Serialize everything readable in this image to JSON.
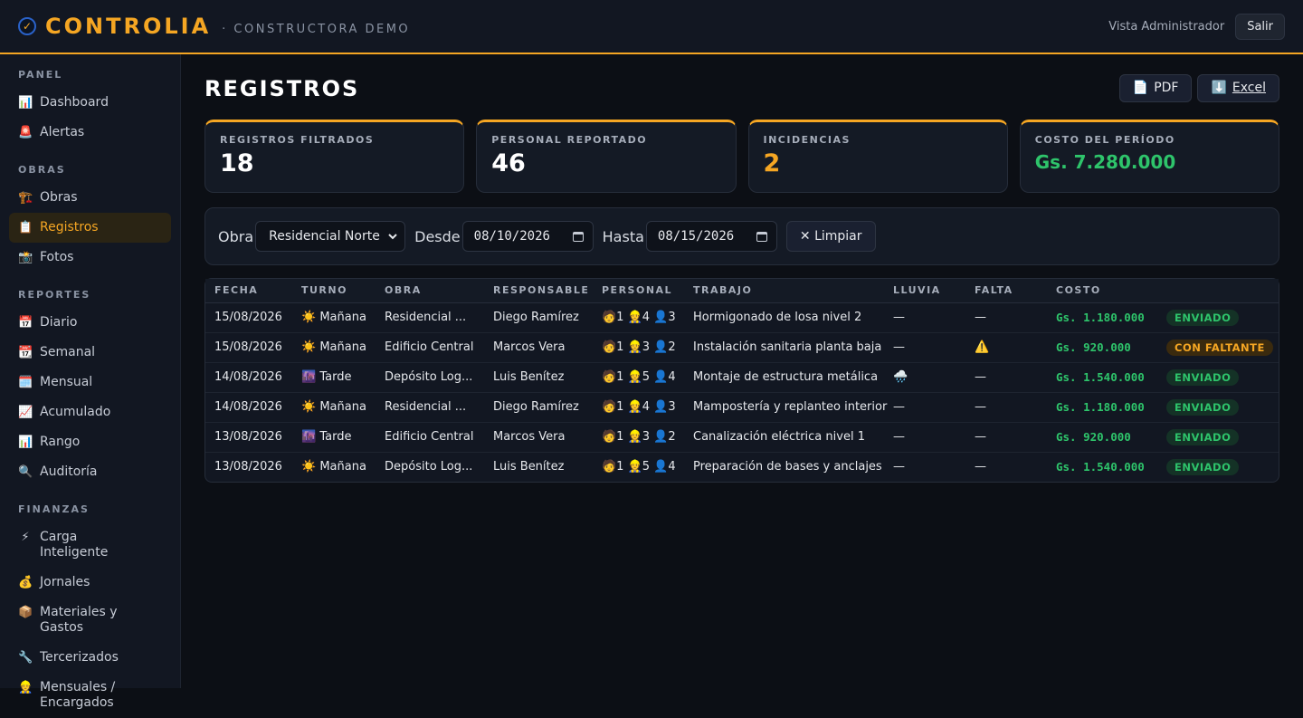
{
  "header": {
    "brand": "CONTROLIA",
    "subtitle": "· CONSTRUCTORA DEMO",
    "role_label": "Vista Administrador",
    "logout_label": "Salir"
  },
  "sidebar": {
    "sections": [
      {
        "title": "PANEL",
        "items": [
          {
            "icon": "📊",
            "label": "Dashboard"
          },
          {
            "icon": "🚨",
            "label": "Alertas"
          }
        ]
      },
      {
        "title": "OBRAS",
        "items": [
          {
            "icon": "🏗️",
            "label": "Obras"
          },
          {
            "icon": "📋",
            "label": "Registros",
            "active": true
          },
          {
            "icon": "📸",
            "label": "Fotos"
          }
        ]
      },
      {
        "title": "REPORTES",
        "items": [
          {
            "icon": "📅",
            "label": "Diario"
          },
          {
            "icon": "📆",
            "label": "Semanal"
          },
          {
            "icon": "🗓️",
            "label": "Mensual"
          },
          {
            "icon": "📈",
            "label": "Acumulado"
          },
          {
            "icon": "📊",
            "label": "Rango"
          },
          {
            "icon": "🔍",
            "label": "Auditoría"
          }
        ]
      },
      {
        "title": "FINANZAS",
        "items": [
          {
            "icon": "⚡",
            "label": "Carga Inteligente"
          },
          {
            "icon": "💰",
            "label": "Jornales"
          },
          {
            "icon": "📦",
            "label": "Materiales y Gastos"
          },
          {
            "icon": "🔧",
            "label": "Tercerizados"
          },
          {
            "icon": "👷",
            "label": "Mensuales / Encargados"
          }
        ]
      }
    ]
  },
  "page": {
    "title": "REGISTROS",
    "pdf_label": "PDF",
    "pdf_icon": "📄",
    "excel_label": "Excel",
    "excel_icon": "⬇️"
  },
  "kpis": [
    {
      "label": "REGISTROS FILTRADOS",
      "value": "18",
      "color": "#ffffff"
    },
    {
      "label": "PERSONAL REPORTADO",
      "value": "46",
      "color": "#ffffff"
    },
    {
      "label": "INCIDENCIAS",
      "value": "2",
      "color": "#f5a623"
    },
    {
      "label": "COSTO DEL PERÍODO",
      "value": "Gs. 7.280.000",
      "color": "#2ec46b"
    }
  ],
  "filters": {
    "obra_label": "Obra",
    "obra_value": "Residencial Norte",
    "desde_label": "Desde",
    "desde_value": "08/10/2026",
    "hasta_label": "Hasta",
    "hasta_value": "08/15/2026",
    "clear_label": "✕ Limpiar"
  },
  "table": {
    "columns": [
      "FECHA",
      "TURNO",
      "OBRA",
      "RESPONSABLE",
      "PERSONAL",
      "TRABAJO",
      "LLUVIA",
      "FALTA",
      "COSTO",
      ""
    ],
    "rows": [
      {
        "fecha": "15/08/2026",
        "turno": "☀️ Mañana",
        "obra": "Residencial ...",
        "responsable": "Diego Ramírez",
        "personal": "🧑1 👷4 👤3",
        "trabajo": "Hormigonado de losa nivel 2",
        "lluvia": "—",
        "falta": "—",
        "costo": "Gs. 1.180.000",
        "estado": "ENVIADO",
        "estado_tipo": "ok"
      },
      {
        "fecha": "15/08/2026",
        "turno": "☀️ Mañana",
        "obra": "Edificio Central",
        "responsable": "Marcos Vera",
        "personal": "🧑1 👷3 👤2",
        "trabajo": "Instalación sanitaria planta baja",
        "lluvia": "—",
        "falta": "⚠️",
        "costo": "Gs. 920.000",
        "estado": "CON FALTANTE",
        "estado_tipo": "warn"
      },
      {
        "fecha": "14/08/2026",
        "turno": "🌆 Tarde",
        "obra": "Depósito Log...",
        "responsable": "Luis Benítez",
        "personal": "🧑1 👷5 👤4",
        "trabajo": "Montaje de estructura metálica",
        "lluvia": "🌧️",
        "falta": "—",
        "costo": "Gs. 1.540.000",
        "estado": "ENVIADO",
        "estado_tipo": "ok"
      },
      {
        "fecha": "14/08/2026",
        "turno": "☀️ Mañana",
        "obra": "Residencial ...",
        "responsable": "Diego Ramírez",
        "personal": "🧑1 👷4 👤3",
        "trabajo": "Mampostería y replanteo interior",
        "lluvia": "—",
        "falta": "—",
        "costo": "Gs. 1.180.000",
        "estado": "ENVIADO",
        "estado_tipo": "ok"
      },
      {
        "fecha": "13/08/2026",
        "turno": "🌆 Tarde",
        "obra": "Edificio Central",
        "responsable": "Marcos Vera",
        "personal": "🧑1 👷3 👤2",
        "trabajo": "Canalización eléctrica nivel 1",
        "lluvia": "—",
        "falta": "—",
        "costo": "Gs. 920.000",
        "estado": "ENVIADO",
        "estado_tipo": "ok"
      },
      {
        "fecha": "13/08/2026",
        "turno": "☀️ Mañana",
        "obra": "Depósito Log...",
        "responsable": "Luis Benítez",
        "personal": "🧑1 👷5 👤4",
        "trabajo": "Preparación de bases y anclajes",
        "lluvia": "—",
        "falta": "—",
        "costo": "Gs. 1.540.000",
        "estado": "ENVIADO",
        "estado_tipo": "ok"
      }
    ]
  }
}
